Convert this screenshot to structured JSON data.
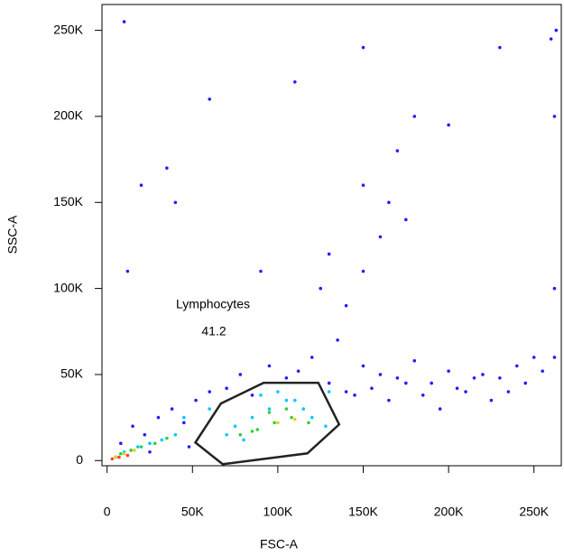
{
  "chart_data": {
    "type": "scatter",
    "x_label": "FSC-A",
    "y_label": "SSC-A",
    "xlim": [
      -3000,
      266000
    ],
    "ylim": [
      -3000,
      265000
    ],
    "xticks": [
      0,
      {
        "value": 50000,
        "label": "50K"
      },
      {
        "value": 100000,
        "label": "100K"
      },
      {
        "value": 150000,
        "label": "150K"
      },
      {
        "value": 200000,
        "label": "200K"
      },
      {
        "value": 250000,
        "label": "250K"
      }
    ],
    "yticks": [
      0,
      {
        "value": 50000,
        "label": "50K"
      },
      {
        "value": 100000,
        "label": "100K"
      },
      {
        "value": 150000,
        "label": "150K"
      },
      {
        "value": 200000,
        "label": "200K"
      },
      {
        "value": 250000,
        "label": "250K"
      }
    ],
    "series": [
      {
        "color": "#1f1fff",
        "x": [
          8000,
          15000,
          22000,
          30000,
          38000,
          45000,
          52000,
          60000,
          70000,
          78000,
          85000,
          95000,
          105000,
          112000,
          120000,
          130000,
          140000,
          150000,
          160000,
          170000,
          180000,
          190000,
          200000,
          210000,
          220000,
          230000,
          240000,
          250000,
          145000,
          155000,
          165000,
          175000,
          185000,
          195000,
          205000,
          215000,
          225000,
          235000,
          245000,
          255000,
          135000,
          140000,
          150000,
          160000,
          150000,
          165000,
          170000,
          130000,
          125000,
          175000,
          40000,
          35000,
          20000,
          12000,
          60000,
          90000,
          110000,
          262000,
          262000,
          262000,
          263000,
          150000,
          180000,
          200000,
          230000,
          260000,
          10000,
          5000,
          25000,
          48000
        ],
        "values": [
          10000,
          20000,
          15000,
          25000,
          30000,
          22000,
          35000,
          40000,
          42000,
          50000,
          38000,
          55000,
          48000,
          52000,
          60000,
          45000,
          40000,
          55000,
          50000,
          48000,
          58000,
          45000,
          52000,
          40000,
          50000,
          48000,
          55000,
          60000,
          38000,
          42000,
          35000,
          45000,
          38000,
          30000,
          42000,
          48000,
          35000,
          40000,
          45000,
          52000,
          70000,
          90000,
          110000,
          130000,
          160000,
          150000,
          180000,
          120000,
          100000,
          140000,
          150000,
          170000,
          160000,
          110000,
          210000,
          110000,
          220000,
          200000,
          100000,
          60000,
          250000,
          240000,
          200000,
          195000,
          240000,
          245000,
          255000,
          2000,
          5000,
          8000
        ]
      },
      {
        "color": "#00c8ff",
        "x": [
          10000,
          18000,
          25000,
          32000,
          40000,
          75000,
          85000,
          95000,
          105000,
          115000,
          90000,
          100000,
          110000,
          120000,
          80000,
          70000,
          128000,
          60000,
          45000,
          130000
        ],
        "values": [
          5000,
          8000,
          10000,
          12000,
          15000,
          20000,
          25000,
          30000,
          35000,
          30000,
          38000,
          40000,
          35000,
          25000,
          12000,
          15000,
          20000,
          30000,
          25000,
          40000
        ]
      },
      {
        "color": "#30d040",
        "x": [
          8000,
          14000,
          20000,
          28000,
          35000,
          78000,
          88000,
          98000,
          108000,
          118000,
          95000,
          105000,
          85000
        ],
        "values": [
          4000,
          6000,
          8000,
          10000,
          13000,
          15000,
          18000,
          22000,
          25000,
          22000,
          28000,
          30000,
          17000
        ]
      },
      {
        "color": "#e8d020",
        "x": [
          5000,
          10000,
          16000,
          100000,
          110000
        ],
        "values": [
          2000,
          4000,
          6000,
          22000,
          24000
        ]
      },
      {
        "color": "#ff4020",
        "x": [
          3000,
          7000,
          12000
        ],
        "values": [
          1000,
          2000,
          3000
        ]
      }
    ],
    "gate": {
      "label": "Lymphocytes",
      "value": "41.2",
      "x": [
        66600,
        91700,
        123700,
        135900,
        117300,
        67700,
        51700
      ],
      "y": [
        33100,
        45200,
        45200,
        21000,
        4200,
        -2100,
        10500
      ]
    }
  }
}
